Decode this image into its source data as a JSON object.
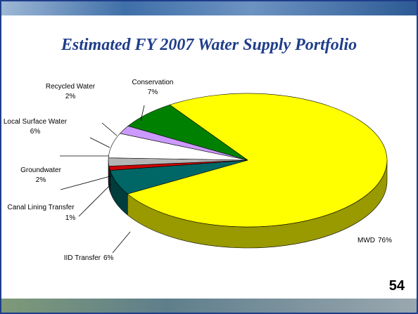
{
  "chart_data": {
    "type": "pie",
    "title": "Estimated FY 2007 Water Supply Portfolio",
    "categories": [
      "MWD",
      "IID Transfer",
      "Canal Lining Transfer",
      "Groundwater",
      "Local Surface Water",
      "Recycled Water",
      "Conservation"
    ],
    "values": [
      76,
      6,
      1,
      2,
      6,
      2,
      7
    ],
    "value_labels": [
      "76%",
      "6%",
      "1%",
      "2%",
      "6%",
      "2%",
      "7%"
    ],
    "colors": [
      "#ffff00",
      "#006666",
      "#cc0000",
      "#b4b4b4",
      "#ffffff",
      "#cc99ff",
      "#008000"
    ]
  },
  "slide": {
    "page_number": "54"
  }
}
